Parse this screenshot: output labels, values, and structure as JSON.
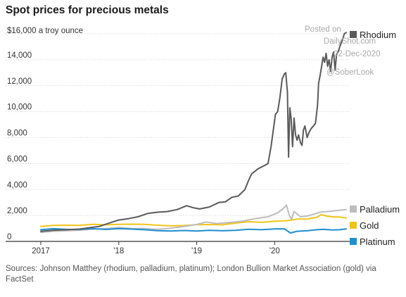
{
  "watermark": {
    "line1": "Posted on",
    "line2": "DailyShot.com",
    "line3": "02-Dec-2020",
    "line4": "@SoberLook"
  },
  "source": "Sources: Johnson Matthey (rhodium, palladium, platinum); London Bullion Market Association (gold) via FactSet",
  "chart_data": {
    "type": "line",
    "title": "Spot prices for precious metals",
    "unit_label": "$16,000 a troy ounce",
    "ylim": [
      0,
      16000
    ],
    "y_ticks": [
      0,
      2000,
      4000,
      6000,
      8000,
      10000,
      12000,
      14000,
      16000
    ],
    "y_tick_labels": [
      "0",
      "2,000",
      "4,000",
      "6,000",
      "8,000",
      "10,000",
      "12,000",
      "14,000",
      "$16,000"
    ],
    "x_range": [
      "2017-01-01",
      "2020-12-01"
    ],
    "x_ticks": [
      "2017-01-01",
      "2018-01-01",
      "2019-01-01",
      "2020-01-01"
    ],
    "x_tick_labels": [
      "2017",
      "'18",
      "'19",
      "'20"
    ],
    "grid": "horizontal",
    "legend_position": "right, at line ends",
    "series": [
      {
        "name": "Rhodium",
        "color": "#5a5a5a",
        "points": [
          [
            "2017-01-01",
            780
          ],
          [
            "2017-03-01",
            860
          ],
          [
            "2017-05-01",
            900
          ],
          [
            "2017-07-01",
            950
          ],
          [
            "2017-08-15",
            1050
          ],
          [
            "2017-10-01",
            1150
          ],
          [
            "2017-11-15",
            1400
          ],
          [
            "2018-01-01",
            1650
          ],
          [
            "2018-02-15",
            1750
          ],
          [
            "2018-04-01",
            1900
          ],
          [
            "2018-05-15",
            2150
          ],
          [
            "2018-07-01",
            2250
          ],
          [
            "2018-08-15",
            2300
          ],
          [
            "2018-10-01",
            2450
          ],
          [
            "2018-11-15",
            2750
          ],
          [
            "2018-12-15",
            2600
          ],
          [
            "2019-01-15",
            2500
          ],
          [
            "2019-03-01",
            2650
          ],
          [
            "2019-04-15",
            3000
          ],
          [
            "2019-05-15",
            3050
          ],
          [
            "2019-06-15",
            3400
          ],
          [
            "2019-07-15",
            3500
          ],
          [
            "2019-08-15",
            4000
          ],
          [
            "2019-09-01",
            4700
          ],
          [
            "2019-09-15",
            5200
          ],
          [
            "2019-10-15",
            5600
          ],
          [
            "2019-11-15",
            5850
          ],
          [
            "2019-12-01",
            6000
          ],
          [
            "2019-12-15",
            7300
          ],
          [
            "2019-12-25",
            8500
          ],
          [
            "2020-01-05",
            9800
          ],
          [
            "2020-01-15",
            10000
          ],
          [
            "2020-01-25",
            11000
          ],
          [
            "2020-02-05",
            12500
          ],
          [
            "2020-02-15",
            12900
          ],
          [
            "2020-02-22",
            13000
          ],
          [
            "2020-03-01",
            11500
          ],
          [
            "2020-03-06",
            6500
          ],
          [
            "2020-03-12",
            10300
          ],
          [
            "2020-03-18",
            9500
          ],
          [
            "2020-03-25",
            7300
          ],
          [
            "2020-04-01",
            9500
          ],
          [
            "2020-04-08",
            8200
          ],
          [
            "2020-04-15",
            7800
          ],
          [
            "2020-04-22",
            8200
          ],
          [
            "2020-05-01",
            7600
          ],
          [
            "2020-05-08",
            7400
          ],
          [
            "2020-05-15",
            8600
          ],
          [
            "2020-05-22",
            8900
          ],
          [
            "2020-06-01",
            8000
          ],
          [
            "2020-06-10",
            8400
          ],
          [
            "2020-06-20",
            8700
          ],
          [
            "2020-07-01",
            8900
          ],
          [
            "2020-07-10",
            9100
          ],
          [
            "2020-07-20",
            10500
          ],
          [
            "2020-07-25",
            12200
          ],
          [
            "2020-08-01",
            12800
          ],
          [
            "2020-08-08",
            13500
          ],
          [
            "2020-08-15",
            14200
          ],
          [
            "2020-08-22",
            13800
          ],
          [
            "2020-08-29",
            14500
          ],
          [
            "2020-09-05",
            13500
          ],
          [
            "2020-09-12",
            14000
          ],
          [
            "2020-09-19",
            13100
          ],
          [
            "2020-09-26",
            14200
          ],
          [
            "2020-10-03",
            14600
          ],
          [
            "2020-10-10",
            13200
          ],
          [
            "2020-10-17",
            14400
          ],
          [
            "2020-10-24",
            14600
          ],
          [
            "2020-11-01",
            15000
          ],
          [
            "2020-11-08",
            15300
          ],
          [
            "2020-11-15",
            15600
          ],
          [
            "2020-11-22",
            16000
          ],
          [
            "2020-12-01",
            16100
          ]
        ]
      },
      {
        "name": "Palladium",
        "color": "#bdbdbd",
        "points": [
          [
            "2017-01-01",
            690
          ],
          [
            "2017-03-01",
            780
          ],
          [
            "2017-05-01",
            820
          ],
          [
            "2017-07-01",
            860
          ],
          [
            "2017-09-01",
            940
          ],
          [
            "2017-11-01",
            980
          ],
          [
            "2018-01-01",
            1080
          ],
          [
            "2018-03-01",
            1000
          ],
          [
            "2018-05-01",
            980
          ],
          [
            "2018-07-01",
            930
          ],
          [
            "2018-09-01",
            1020
          ],
          [
            "2018-11-01",
            1150
          ],
          [
            "2019-01-01",
            1300
          ],
          [
            "2019-02-15",
            1500
          ],
          [
            "2019-04-01",
            1380
          ],
          [
            "2019-06-01",
            1450
          ],
          [
            "2019-08-01",
            1550
          ],
          [
            "2019-10-01",
            1750
          ],
          [
            "2019-12-01",
            1900
          ],
          [
            "2020-01-15",
            2200
          ],
          [
            "2020-02-15",
            2600
          ],
          [
            "2020-02-25",
            2800
          ],
          [
            "2020-03-10",
            2000
          ],
          [
            "2020-03-20",
            1700
          ],
          [
            "2020-04-01",
            2300
          ],
          [
            "2020-05-01",
            1900
          ],
          [
            "2020-06-01",
            1950
          ],
          [
            "2020-07-01",
            2100
          ],
          [
            "2020-08-01",
            2250
          ],
          [
            "2020-09-01",
            2300
          ],
          [
            "2020-10-01",
            2350
          ],
          [
            "2020-11-01",
            2400
          ],
          [
            "2020-12-01",
            2450
          ]
        ]
      },
      {
        "name": "Gold",
        "color": "#f0c419",
        "points": [
          [
            "2017-01-01",
            1150
          ],
          [
            "2017-03-01",
            1230
          ],
          [
            "2017-05-01",
            1250
          ],
          [
            "2017-07-01",
            1230
          ],
          [
            "2017-09-01",
            1320
          ],
          [
            "2017-11-01",
            1280
          ],
          [
            "2018-01-01",
            1320
          ],
          [
            "2018-03-01",
            1330
          ],
          [
            "2018-05-01",
            1310
          ],
          [
            "2018-07-01",
            1250
          ],
          [
            "2018-09-01",
            1200
          ],
          [
            "2018-11-01",
            1220
          ],
          [
            "2019-01-01",
            1290
          ],
          [
            "2019-03-01",
            1300
          ],
          [
            "2019-05-01",
            1280
          ],
          [
            "2019-07-01",
            1410
          ],
          [
            "2019-09-01",
            1520
          ],
          [
            "2019-11-01",
            1470
          ],
          [
            "2020-01-01",
            1550
          ],
          [
            "2020-03-01",
            1600
          ],
          [
            "2020-04-15",
            1720
          ],
          [
            "2020-06-01",
            1730
          ],
          [
            "2020-07-15",
            1850
          ],
          [
            "2020-08-06",
            2060
          ],
          [
            "2020-09-01",
            1950
          ],
          [
            "2020-10-01",
            1890
          ],
          [
            "2020-11-01",
            1880
          ],
          [
            "2020-12-01",
            1800
          ]
        ]
      },
      {
        "name": "Platinum",
        "color": "#1f8fcf",
        "points": [
          [
            "2017-01-01",
            900
          ],
          [
            "2017-03-01",
            980
          ],
          [
            "2017-05-01",
            930
          ],
          [
            "2017-07-01",
            920
          ],
          [
            "2017-09-01",
            990
          ],
          [
            "2017-11-01",
            920
          ],
          [
            "2018-01-01",
            980
          ],
          [
            "2018-03-01",
            950
          ],
          [
            "2018-05-01",
            900
          ],
          [
            "2018-07-01",
            830
          ],
          [
            "2018-09-01",
            800
          ],
          [
            "2018-11-01",
            840
          ],
          [
            "2019-01-01",
            800
          ],
          [
            "2019-03-01",
            850
          ],
          [
            "2019-05-01",
            820
          ],
          [
            "2019-07-01",
            850
          ],
          [
            "2019-09-01",
            940
          ],
          [
            "2019-11-01",
            900
          ],
          [
            "2020-01-01",
            960
          ],
          [
            "2020-02-15",
            970
          ],
          [
            "2020-03-15",
            650
          ],
          [
            "2020-04-15",
            780
          ],
          [
            "2020-06-01",
            820
          ],
          [
            "2020-07-15",
            900
          ],
          [
            "2020-08-15",
            930
          ],
          [
            "2020-10-01",
            880
          ],
          [
            "2020-11-01",
            900
          ],
          [
            "2020-12-01",
            960
          ]
        ]
      }
    ]
  }
}
